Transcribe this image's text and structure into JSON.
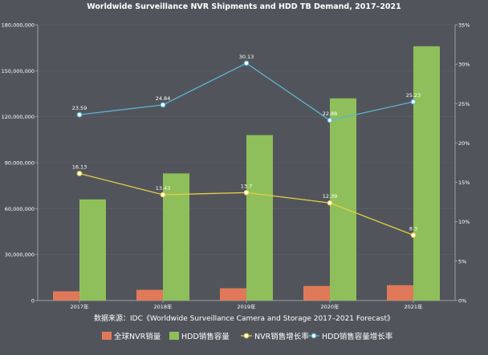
{
  "title": "Worldwide Surveillance NVR Shipments and HDD TB Demand, 2017–2021",
  "source": "数据来源：IDC《Worldwide Surveillance Camera and Storage 2017–2021 Forecast》",
  "colors": {
    "nvr_units": "#e0795a",
    "hdd_capacity": "#8fbf5a",
    "nvr_growth": "#e7cf45",
    "hdd_growth": "#5fb3d3",
    "background": "#51555b",
    "text": "#ffffff"
  },
  "chart_data": {
    "type": "bar",
    "title": "Worldwide Surveillance NVR Shipments and HDD TB Demand, 2017–2021",
    "categories": [
      "2017年",
      "2018年",
      "2019年",
      "2020年",
      "2021年"
    ],
    "y_left": {
      "min": 0,
      "max": 180000000,
      "ticks": [
        0,
        30000000,
        60000000,
        90000000,
        120000000,
        150000000,
        180000000
      ],
      "tick_labels": [
        "0",
        "30,000,000",
        "60,000,000",
        "90,000,000",
        "120,000,000",
        "150,000,000",
        "180,000,000"
      ]
    },
    "y_right": {
      "min": 0,
      "max": 35,
      "ticks": [
        0,
        5,
        10,
        15,
        20,
        25,
        30,
        35
      ],
      "tick_labels": [
        "0%",
        "5%",
        "10%",
        "15%",
        "20%",
        "25%",
        "30%",
        "35%"
      ]
    },
    "series": [
      {
        "name": "全球NVR销量",
        "type": "bar",
        "axis": "left",
        "values": [
          6000000,
          7000000,
          8000000,
          9500000,
          10000000
        ]
      },
      {
        "name": "HDD销售容量",
        "type": "bar",
        "axis": "left",
        "values": [
          66000000,
          83000000,
          108000000,
          132000000,
          166000000
        ]
      },
      {
        "name": "NVR销售增长率",
        "type": "line",
        "axis": "right",
        "values": [
          16.13,
          13.43,
          13.7,
          12.39,
          8.3
        ],
        "labels": [
          "16.13",
          "13.43",
          "13.7",
          "12.39",
          "8.3"
        ]
      },
      {
        "name": "HDD销售容量增长率",
        "type": "line",
        "axis": "right",
        "values": [
          23.59,
          24.84,
          30.13,
          22.88,
          25.23
        ],
        "labels": [
          "23.59",
          "24.84",
          "30.13",
          "22.88",
          "25.23"
        ]
      }
    ],
    "grid": true,
    "legend_position": "bottom"
  }
}
